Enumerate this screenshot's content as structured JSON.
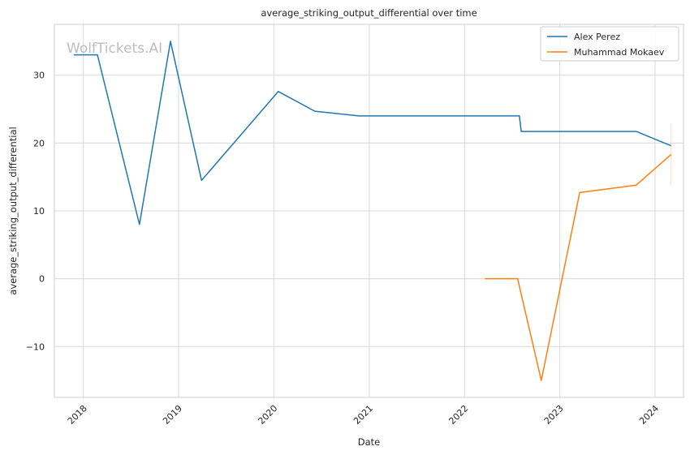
{
  "chart_data": {
    "type": "line",
    "title": "average_striking_output_differential over time",
    "xlabel": "Date",
    "ylabel": "average_striking_output_differential",
    "x_axis_type": "date",
    "xlim": [
      "2017-09-12",
      "2024-04-19"
    ],
    "ylim": [
      -17.5,
      37.5
    ],
    "x_ticks": [
      "2018",
      "2019",
      "2020",
      "2021",
      "2022",
      "2023",
      "2024"
    ],
    "x_tick_dates": [
      "2018-01-01",
      "2019-01-01",
      "2020-01-01",
      "2021-01-01",
      "2022-01-01",
      "2023-01-01",
      "2024-01-01"
    ],
    "y_ticks": [
      -10,
      0,
      10,
      20,
      30
    ],
    "y_tick_labels": [
      "−10",
      "0",
      "10",
      "20",
      "30"
    ],
    "grid": true,
    "legend_position": "top-right",
    "watermark": "WolfTickets.AI",
    "series": [
      {
        "name": "Alex Perez",
        "color": "#1f77b4",
        "points": [
          [
            "2017-11-25",
            33.0
          ],
          [
            "2018-02-24",
            33.0
          ],
          [
            "2018-08-04",
            8.0
          ],
          [
            "2018-12-01",
            35.0
          ],
          [
            "2019-03-30",
            14.5
          ],
          [
            "2020-01-18",
            27.6
          ],
          [
            "2020-06-06",
            24.7
          ],
          [
            "2020-11-21",
            24.0
          ],
          [
            "2022-07-30",
            24.0
          ],
          [
            "2022-08-06",
            21.7
          ],
          [
            "2023-10-21",
            21.7
          ],
          [
            "2024-03-02",
            19.6
          ]
        ]
      },
      {
        "name": "Muhammad Mokaev",
        "color": "#ff7f0e",
        "points": [
          [
            "2022-03-19",
            0.0
          ],
          [
            "2022-07-23",
            0.0
          ],
          [
            "2022-10-22",
            -15.0
          ],
          [
            "2023-03-18",
            12.7
          ],
          [
            "2023-10-21",
            13.8
          ],
          [
            "2024-03-02",
            18.3
          ]
        ],
        "error_bar": {
          "x": "2024-03-02",
          "low": 13.8,
          "high": 22.8
        }
      }
    ]
  }
}
